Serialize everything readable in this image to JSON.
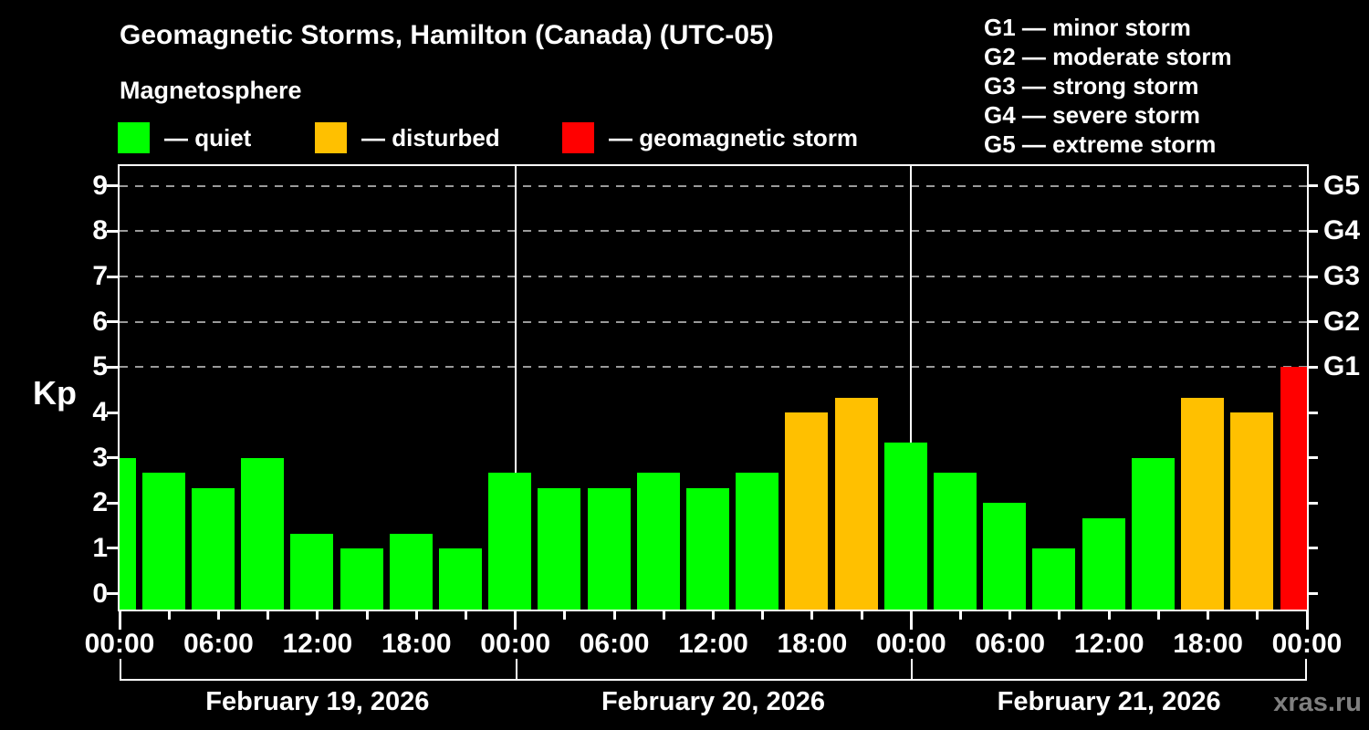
{
  "header": {
    "title": "Geomagnetic Storms, Hamilton (Canada) (UTC-05)",
    "subtitle": "Magnetosphere"
  },
  "legend": {
    "items": [
      {
        "label": "— quiet",
        "level": "quiet"
      },
      {
        "label": "— disturbed",
        "level": "disturbed"
      },
      {
        "label": "— geomagnetic storm",
        "level": "storm"
      }
    ]
  },
  "storm_scale_legend": {
    "items": [
      {
        "label": "G1 — minor storm"
      },
      {
        "label": "G2 — moderate storm"
      },
      {
        "label": "G3 — strong storm"
      },
      {
        "label": "G4 — severe storm"
      },
      {
        "label": "G5 — extreme storm"
      }
    ]
  },
  "watermark": "xras.ru",
  "chart_data": {
    "type": "bar",
    "title": "Geomagnetic Storms, Hamilton (Canada) (UTC-05)",
    "subtitle": "Magnetosphere",
    "ylabel": "Kp",
    "ylim": [
      -0.35,
      9.44
    ],
    "y_ticks": [
      0,
      1,
      2,
      3,
      4,
      5,
      6,
      7,
      8,
      9
    ],
    "gridlines_at": [
      5,
      6,
      7,
      8,
      9
    ],
    "grid": "dashed horizontal at storm levels only",
    "right_axis": [
      {
        "value": 5,
        "label": "G1"
      },
      {
        "value": 6,
        "label": "G2"
      },
      {
        "value": 7,
        "label": "G3"
      },
      {
        "value": 8,
        "label": "G4"
      },
      {
        "value": 9,
        "label": "G5"
      }
    ],
    "x_tick_labels": [
      "00:00",
      "06:00",
      "12:00",
      "18:00",
      "00:00",
      "06:00",
      "12:00",
      "18:00",
      "00:00",
      "06:00",
      "12:00",
      "18:00",
      "00:00"
    ],
    "days": [
      "February 19, 2026",
      "February 20, 2026",
      "February 21, 2026"
    ],
    "bar_interval_hours": 3,
    "total_hours": 72,
    "colors": {
      "quiet": "#00ff00",
      "disturbed": "#ffc000",
      "storm": "#ff0000"
    },
    "bars": [
      {
        "hour": 0,
        "kp": 3.0,
        "level": "quiet"
      },
      {
        "hour": 3,
        "kp": 2.67,
        "level": "quiet"
      },
      {
        "hour": 6,
        "kp": 2.33,
        "level": "quiet"
      },
      {
        "hour": 9,
        "kp": 3.0,
        "level": "quiet"
      },
      {
        "hour": 12,
        "kp": 1.33,
        "level": "quiet"
      },
      {
        "hour": 15,
        "kp": 1.0,
        "level": "quiet"
      },
      {
        "hour": 18,
        "kp": 1.33,
        "level": "quiet"
      },
      {
        "hour": 21,
        "kp": 1.0,
        "level": "quiet"
      },
      {
        "hour": 24,
        "kp": 2.67,
        "level": "quiet"
      },
      {
        "hour": 27,
        "kp": 2.33,
        "level": "quiet"
      },
      {
        "hour": 30,
        "kp": 2.33,
        "level": "quiet"
      },
      {
        "hour": 33,
        "kp": 2.67,
        "level": "quiet"
      },
      {
        "hour": 36,
        "kp": 2.33,
        "level": "quiet"
      },
      {
        "hour": 39,
        "kp": 2.67,
        "level": "quiet"
      },
      {
        "hour": 42,
        "kp": 4.0,
        "level": "disturbed"
      },
      {
        "hour": 45,
        "kp": 4.33,
        "level": "disturbed"
      },
      {
        "hour": 48,
        "kp": 3.33,
        "level": "quiet"
      },
      {
        "hour": 51,
        "kp": 2.67,
        "level": "quiet"
      },
      {
        "hour": 54,
        "kp": 2.0,
        "level": "quiet"
      },
      {
        "hour": 57,
        "kp": 1.0,
        "level": "quiet"
      },
      {
        "hour": 60,
        "kp": 1.67,
        "level": "quiet"
      },
      {
        "hour": 63,
        "kp": 3.0,
        "level": "quiet"
      },
      {
        "hour": 66,
        "kp": 4.33,
        "level": "disturbed"
      },
      {
        "hour": 69,
        "kp": 4.0,
        "level": "disturbed"
      },
      {
        "hour": 72,
        "kp": 5.0,
        "level": "storm"
      }
    ]
  }
}
